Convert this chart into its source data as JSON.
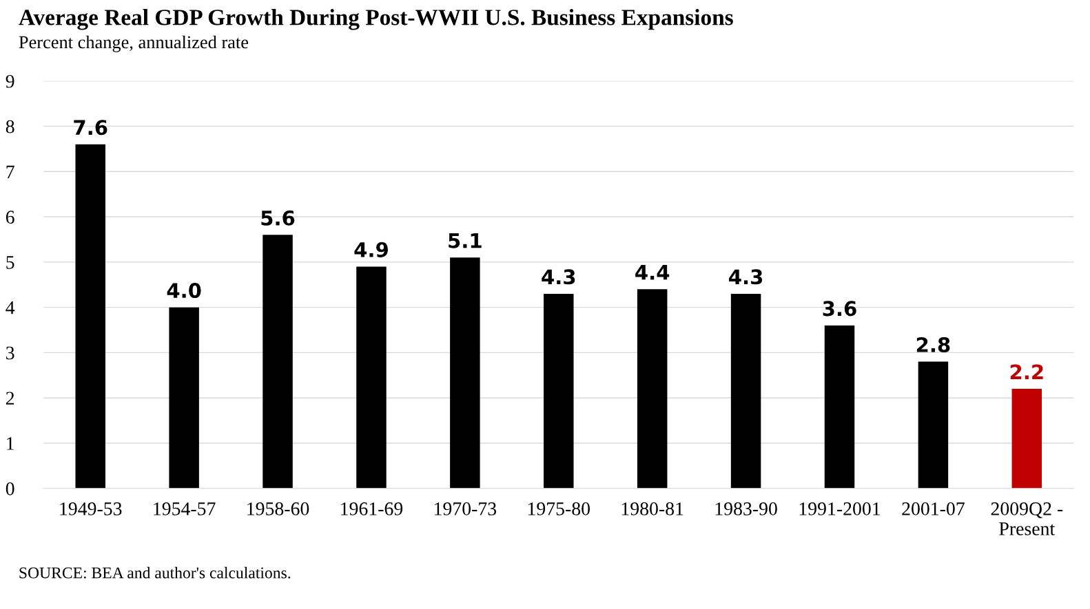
{
  "chart_data": {
    "type": "bar",
    "title": "Average Real GDP Growth During Post-WWII U.S. Business Expansions",
    "subtitle": "Percent change, annualized rate",
    "categories": [
      "1949-53",
      "1954-57",
      "1958-60",
      "1961-69",
      "1970-73",
      "1975-80",
      "1980-81",
      "1983-90",
      "1991-2001",
      "2001-07",
      "2009Q2 -\nPresent"
    ],
    "values": [
      7.6,
      4.0,
      5.6,
      4.9,
      5.1,
      4.3,
      4.4,
      4.3,
      3.6,
      2.8,
      2.2
    ],
    "colors": [
      "#000000",
      "#000000",
      "#000000",
      "#000000",
      "#000000",
      "#000000",
      "#000000",
      "#000000",
      "#000000",
      "#000000",
      "#c00000"
    ],
    "value_labels": [
      "7.6",
      "4.0",
      "5.6",
      "4.9",
      "5.1",
      "4.3",
      "4.4",
      "4.3",
      "3.6",
      "2.8",
      "2.2"
    ],
    "ylim": [
      0,
      9
    ],
    "yticks": [
      0,
      1,
      2,
      3,
      4,
      5,
      6,
      7,
      8,
      9
    ],
    "grid": "y",
    "annotations": [
      "SOURCE: BEA and author's calculations."
    ]
  }
}
